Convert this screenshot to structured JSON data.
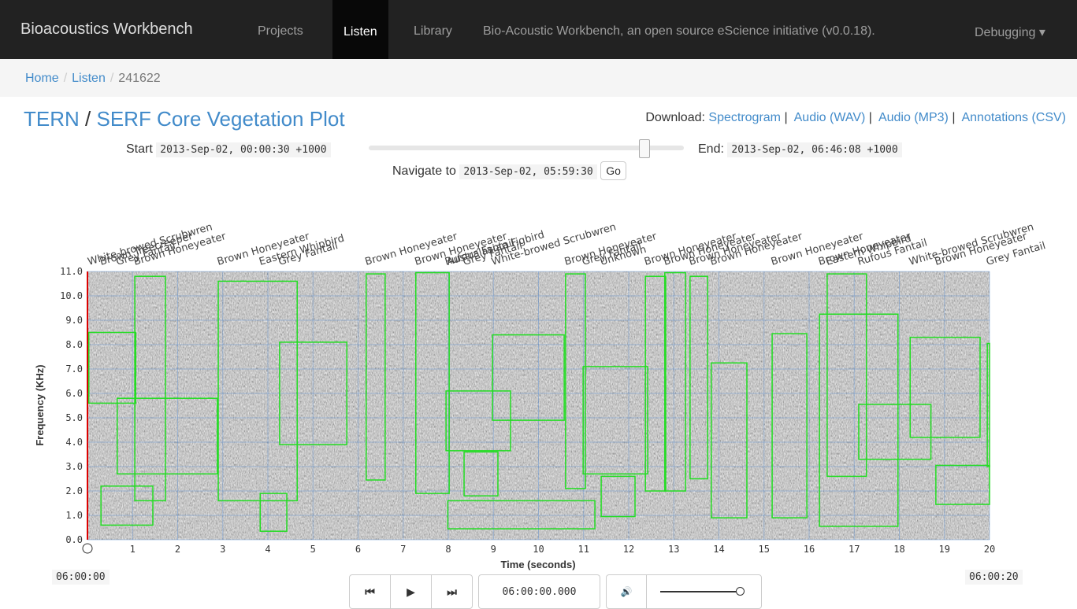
{
  "navbar": {
    "brand": "Bioacoustics Workbench",
    "links": [
      "Projects",
      "Listen",
      "Library",
      "Bio-Acoustic Workbench, an open source eScience initiative (v0.0.18)."
    ],
    "dropdown": "Debugging"
  },
  "breadcrumb": {
    "items": [
      "Home",
      "Listen",
      "241622"
    ],
    "separator": "/"
  },
  "heading": {
    "project": "TERN",
    "separator": "/",
    "site": "SERF Core Vegetation Plot"
  },
  "download": {
    "label": "Download:",
    "links": [
      "Spectrogram",
      "Audio (WAV)",
      "Audio (MP3)",
      "Annotations (CSV)"
    ],
    "separator": "|"
  },
  "range": {
    "start_label": "Start",
    "start": "2013-Sep-02, 00:00:30 +1000",
    "end_label": "End:",
    "end": "2013-Sep-02, 06:46:08 +1000",
    "navigate_label": "Navigate to",
    "navigate_value": "2013-Sep-02, 05:59:30",
    "go": "Go"
  },
  "spectrogram": {
    "y_label": "Frequency (KHz)",
    "x_label": "Time (seconds)",
    "xlim": [
      0,
      20
    ],
    "ylim": [
      0,
      11
    ],
    "xticks": [
      1,
      2,
      3,
      4,
      5,
      6,
      7,
      8,
      9,
      10,
      11,
      12,
      13,
      14,
      15,
      16,
      17,
      18,
      19,
      20
    ],
    "yticks": [
      {
        "value": 0,
        "label": "0.0"
      },
      {
        "value": 1,
        "label": "1.0"
      },
      {
        "value": 2,
        "label": "2.0"
      },
      {
        "value": 3,
        "label": "3.0"
      },
      {
        "value": 4,
        "label": "4.0"
      },
      {
        "value": 5,
        "label": "5.0"
      },
      {
        "value": 6,
        "label": "6.0"
      },
      {
        "value": 7,
        "label": "7.0"
      },
      {
        "value": 8,
        "label": "8.0"
      },
      {
        "value": 9,
        "label": "9.0"
      },
      {
        "value": 10,
        "label": "10.0"
      },
      {
        "value": 11,
        "label": "11.0"
      }
    ],
    "start_time": "06:00:00",
    "end_time": "06:00:20",
    "annotations": [
      {
        "label": "White-browed Scrubwren",
        "start": 0.03,
        "end": 1.07,
        "low": 5.6,
        "high": 8.5
      },
      {
        "label": "Brown Honeyeater",
        "start": 1.05,
        "end": 1.73,
        "low": 1.6,
        "high": 10.8
      },
      {
        "label": "Grey Fantail",
        "start": 0.66,
        "end": 2.88,
        "low": 2.7,
        "high": 5.8
      },
      {
        "label": "Brown Treecreeper",
        "start": 0.3,
        "end": 1.45,
        "low": 0.6,
        "high": 2.2
      },
      {
        "label": "Brown Honeyeater",
        "start": 2.9,
        "end": 4.65,
        "low": 1.6,
        "high": 10.6
      },
      {
        "label": "Eastern Whipbird",
        "start": 3.83,
        "end": 4.42,
        "low": 0.35,
        "high": 1.9
      },
      {
        "label": "Grey Fantail",
        "start": 4.26,
        "end": 5.75,
        "low": 3.9,
        "high": 8.1
      },
      {
        "label": "Brown Honeyeater",
        "start": 6.18,
        "end": 6.6,
        "low": 2.45,
        "high": 10.9
      },
      {
        "label": "Brown Honeyeater",
        "start": 7.28,
        "end": 8.02,
        "low": 1.9,
        "high": 10.95
      },
      {
        "label": "Rufous Fantail",
        "start": 7.95,
        "end": 9.38,
        "low": 3.65,
        "high": 6.1
      },
      {
        "label": "Grey Fantail",
        "start": 8.35,
        "end": 9.1,
        "low": 1.8,
        "high": 3.6
      },
      {
        "label": "Australasian Figbird",
        "start": 7.99,
        "end": 11.25,
        "low": 0.45,
        "high": 1.6
      },
      {
        "label": "White-browed Scrubwren",
        "start": 8.98,
        "end": 10.57,
        "low": 4.9,
        "high": 8.4
      },
      {
        "label": "Brown Honeyeater",
        "start": 10.6,
        "end": 11.04,
        "low": 2.1,
        "high": 10.9
      },
      {
        "label": "Grey Fantail",
        "start": 10.99,
        "end": 12.42,
        "low": 2.7,
        "high": 7.1
      },
      {
        "label": "Unknown",
        "start": 11.39,
        "end": 12.14,
        "low": 0.95,
        "high": 2.6
      },
      {
        "label": "Brown Honeyeater",
        "start": 12.37,
        "end": 12.82,
        "low": 2.0,
        "high": 10.8
      },
      {
        "label": "Brown Honeyeater",
        "start": 12.8,
        "end": 13.26,
        "low": 2.0,
        "high": 10.95
      },
      {
        "label": "Brown Honeyeater",
        "start": 13.36,
        "end": 13.75,
        "low": 2.5,
        "high": 10.8
      },
      {
        "label": "Brown Honeyeater",
        "start": 13.83,
        "end": 14.62,
        "low": 0.9,
        "high": 7.25
      },
      {
        "label": "Brown Honeyeater",
        "start": 15.18,
        "end": 15.95,
        "low": 0.9,
        "high": 8.45
      },
      {
        "label": "Eastern Whipbird",
        "start": 16.4,
        "end": 17.27,
        "low": 2.6,
        "high": 10.9
      },
      {
        "label": "Brown Honeyeater",
        "start": 16.23,
        "end": 17.97,
        "low": 0.55,
        "high": 9.25
      },
      {
        "label": "Rufous Fantail",
        "start": 17.1,
        "end": 18.7,
        "low": 3.3,
        "high": 5.55
      },
      {
        "label": "White-browed Scrubwren",
        "start": 18.24,
        "end": 19.79,
        "low": 4.2,
        "high": 8.3
      },
      {
        "label": "Brown Honeyeater",
        "start": 18.81,
        "end": 20.0,
        "low": 1.45,
        "high": 3.05
      },
      {
        "label": "Grey Fantail",
        "start": 19.95,
        "end": 20.0,
        "low": 3.0,
        "high": 8.05
      }
    ]
  },
  "player": {
    "time": "06:00:00.000"
  }
}
